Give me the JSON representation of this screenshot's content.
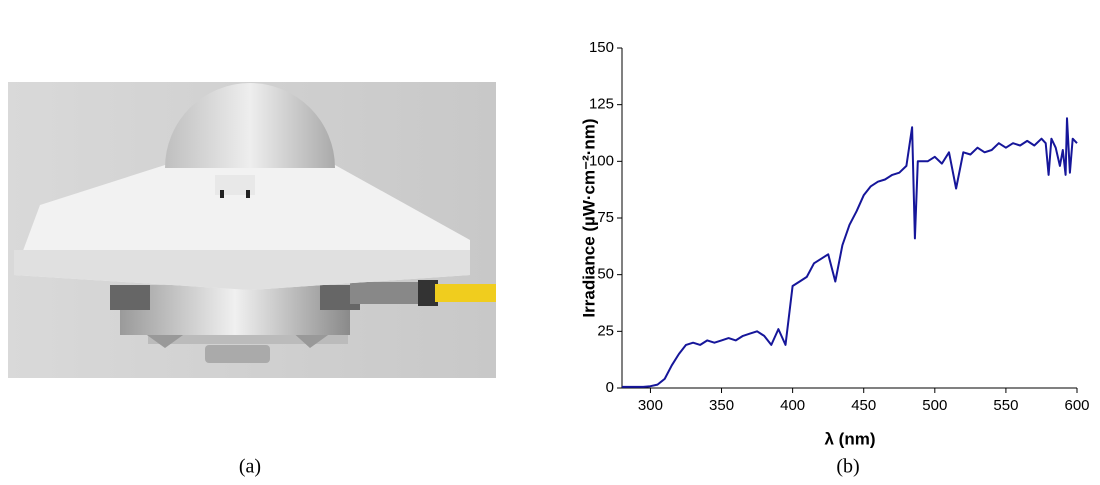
{
  "captions": [
    "(a)",
    "(b)"
  ],
  "chart_data": {
    "type": "line",
    "xlabel": "λ (nm)",
    "ylabel": "Irradiance (µW·cm⁻²·nm)",
    "x": [
      280,
      285,
      290,
      295,
      300,
      305,
      310,
      315,
      320,
      325,
      330,
      335,
      340,
      345,
      350,
      355,
      360,
      365,
      370,
      375,
      380,
      385,
      390,
      395,
      400,
      405,
      410,
      415,
      420,
      425,
      430,
      435,
      440,
      445,
      450,
      455,
      460,
      465,
      470,
      475,
      480,
      484,
      486,
      488,
      490,
      495,
      500,
      505,
      510,
      515,
      520,
      525,
      530,
      535,
      540,
      545,
      550,
      555,
      560,
      565,
      570,
      575,
      578,
      580,
      582,
      585,
      588,
      590,
      592,
      593,
      595,
      597,
      600
    ],
    "series": [
      {
        "color": "#16169a",
        "values": [
          0.5,
          0.5,
          0.5,
          0.5,
          0.8,
          1.5,
          4,
          10,
          15,
          19,
          20,
          19,
          21,
          20,
          21,
          22,
          21,
          23,
          24,
          25,
          23,
          19,
          26,
          19,
          45,
          47,
          49,
          55,
          57,
          59,
          47,
          63,
          72,
          78,
          85,
          89,
          91,
          92,
          94,
          95,
          98,
          115,
          66,
          100,
          100,
          100,
          102,
          99,
          104,
          88,
          104,
          103,
          106,
          104,
          105,
          108,
          106,
          108,
          107,
          109,
          107,
          110,
          108,
          94,
          110,
          106,
          98,
          105,
          94,
          119,
          95,
          110,
          108
        ]
      }
    ],
    "xlim": [
      280,
      600
    ],
    "xticks": [
      300,
      350,
      400,
      450,
      500,
      550,
      600
    ],
    "ylim": [
      0,
      150
    ],
    "yticks": [
      0,
      25,
      50,
      75,
      100,
      125,
      150
    ]
  }
}
